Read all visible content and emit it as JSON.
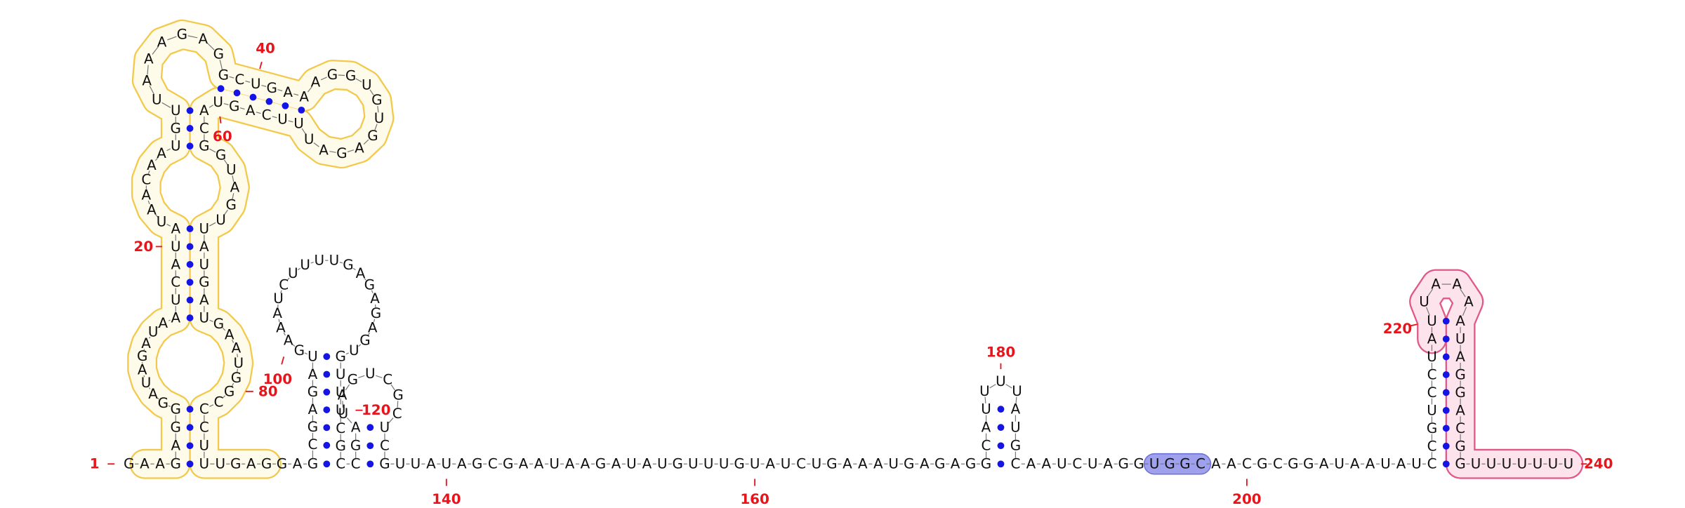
{
  "sequence": [
    "G",
    "A",
    "A",
    "G",
    "A",
    "G",
    "G",
    "G",
    "A",
    "U",
    "A",
    "G",
    "A",
    "U",
    "A",
    "A",
    "U",
    "C",
    "A",
    "U",
    "A",
    "U",
    "A",
    "A",
    "C",
    "A",
    "A",
    "U",
    "G",
    "U",
    "U",
    "A",
    "A",
    "A",
    "G",
    "A",
    "G",
    "G",
    "C",
    "U",
    "G",
    "A",
    "A",
    "A",
    "G",
    "G",
    "U",
    "G",
    "U",
    "G",
    "A",
    "G",
    "A",
    "U",
    "U",
    "U",
    "C",
    "A",
    "G",
    "U",
    "A",
    "C",
    "G",
    "G",
    "U",
    "A",
    "G",
    "U",
    "U",
    "A",
    "U",
    "G",
    "A",
    "U",
    "G",
    "A",
    "A",
    "U",
    "G",
    "G",
    "C",
    "C",
    "C",
    "U",
    "U",
    "U",
    "G",
    "A",
    "G",
    "G",
    "A",
    "G",
    "C",
    "G",
    "A",
    "G",
    "A",
    "U",
    "G",
    "A",
    "A",
    "A",
    "U",
    "C",
    "U",
    "U",
    "U",
    "U",
    "G",
    "A",
    "G",
    "A",
    "G",
    "A",
    "G",
    "U",
    "G",
    "U",
    "U",
    "U",
    "C",
    "G",
    "C",
    "C",
    "G",
    "A",
    "U",
    "A",
    "G",
    "U",
    "C",
    "G",
    "C",
    "U",
    "C",
    "G",
    "U",
    "U",
    "A",
    "U",
    "A",
    "G",
    "C",
    "G",
    "A",
    "A",
    "U",
    "A",
    "A",
    "G",
    "A",
    "U",
    "A",
    "U",
    "G",
    "U",
    "U",
    "U",
    "G",
    "U",
    "A",
    "U",
    "C",
    "U",
    "G",
    "A",
    "A",
    "A",
    "U",
    "G",
    "A",
    "G",
    "A",
    "G",
    "G",
    "C",
    "A",
    "U",
    "U",
    "U",
    "U",
    "A",
    "U",
    "G",
    "C",
    "A",
    "A",
    "U",
    "C",
    "U",
    "A",
    "G",
    "G",
    "U",
    "G",
    "G",
    "C",
    "A",
    "A",
    "C",
    "G",
    "C",
    "G",
    "G",
    "A",
    "U",
    "A",
    "A",
    "U",
    "A",
    "U",
    "C",
    "C",
    "G",
    "U",
    "C",
    "C",
    "U",
    "A",
    "U",
    "U",
    "A",
    "A",
    "A",
    "A",
    "U",
    "A",
    "G",
    "G",
    "A",
    "C",
    "G",
    "G",
    "U",
    "U",
    "U",
    "U",
    "U",
    "U",
    "U"
  ],
  "numbering": [
    1,
    20,
    40,
    60,
    80,
    100,
    120,
    140,
    160,
    180,
    200,
    220,
    240
  ]
}
